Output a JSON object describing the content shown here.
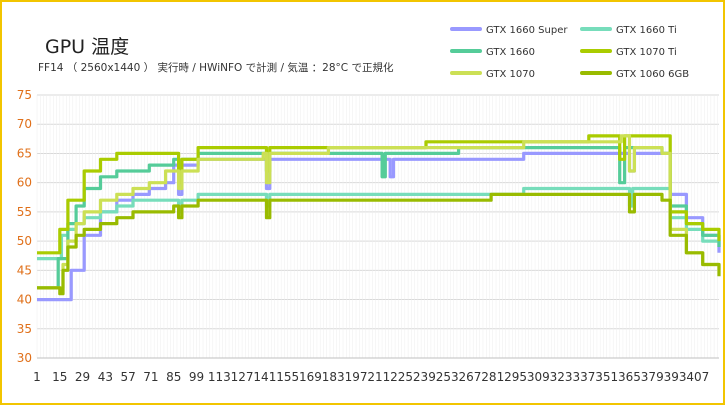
{
  "chart_data": {
    "type": "line",
    "title": "GPU 温度",
    "subtitle": "FF14 （ 2560x1440 ） 実行時 / HWiNFO で計測 / 気温 ：28°C で正規化",
    "xlabel": "",
    "ylabel": "",
    "ylim": [
      30,
      75
    ],
    "y_ticks": [
      30,
      35,
      40,
      45,
      50,
      55,
      60,
      65,
      70,
      75
    ],
    "x_range": [
      1,
      420
    ],
    "x_ticks": [
      1,
      15,
      29,
      43,
      57,
      71,
      85,
      99,
      113,
      127,
      141,
      155,
      169,
      183,
      197,
      211,
      225,
      239,
      253,
      267,
      281,
      295,
      309,
      323,
      337,
      351,
      365,
      379,
      393,
      407
    ],
    "grid": true,
    "legend_position": "top-right",
    "series": [
      {
        "name": "GTX 1660 Super",
        "color": "#9999ff",
        "points": [
          [
            1,
            40
          ],
          [
            20,
            40
          ],
          [
            22,
            45
          ],
          [
            30,
            51
          ],
          [
            40,
            55
          ],
          [
            50,
            57
          ],
          [
            60,
            58
          ],
          [
            70,
            59
          ],
          [
            80,
            60
          ],
          [
            85,
            63
          ],
          [
            88,
            58
          ],
          [
            90,
            63
          ],
          [
            100,
            64
          ],
          [
            120,
            64
          ],
          [
            140,
            64
          ],
          [
            142,
            59
          ],
          [
            144,
            64
          ],
          [
            160,
            64
          ],
          [
            190,
            64
          ],
          [
            215,
            64
          ],
          [
            218,
            61
          ],
          [
            220,
            64
          ],
          [
            250,
            64
          ],
          [
            300,
            65
          ],
          [
            340,
            65
          ],
          [
            360,
            65
          ],
          [
            365,
            62
          ],
          [
            368,
            65
          ],
          [
            385,
            65
          ],
          [
            390,
            58
          ],
          [
            400,
            54
          ],
          [
            410,
            51
          ],
          [
            420,
            48
          ]
        ]
      },
      {
        "name": "GTX 1660 Ti",
        "color": "#77ddbb",
        "points": [
          [
            1,
            47
          ],
          [
            14,
            47
          ],
          [
            16,
            51
          ],
          [
            20,
            52
          ],
          [
            25,
            53
          ],
          [
            30,
            54
          ],
          [
            40,
            55
          ],
          [
            50,
            56
          ],
          [
            60,
            57
          ],
          [
            70,
            57
          ],
          [
            85,
            57
          ],
          [
            88,
            55
          ],
          [
            90,
            57
          ],
          [
            100,
            58
          ],
          [
            140,
            58
          ],
          [
            142,
            56
          ],
          [
            144,
            58
          ],
          [
            180,
            58
          ],
          [
            200,
            58
          ],
          [
            240,
            58
          ],
          [
            280,
            58
          ],
          [
            300,
            59
          ],
          [
            340,
            59
          ],
          [
            360,
            59
          ],
          [
            365,
            56
          ],
          [
            367,
            59
          ],
          [
            385,
            59
          ],
          [
            390,
            54
          ],
          [
            400,
            52
          ],
          [
            410,
            50
          ],
          [
            420,
            49
          ]
        ]
      },
      {
        "name": "GTX 1660",
        "color": "#55cc99",
        "points": [
          [
            1,
            42
          ],
          [
            10,
            42
          ],
          [
            14,
            47
          ],
          [
            20,
            53
          ],
          [
            25,
            56
          ],
          [
            30,
            59
          ],
          [
            40,
            61
          ],
          [
            50,
            62
          ],
          [
            60,
            62
          ],
          [
            70,
            63
          ],
          [
            85,
            64
          ],
          [
            88,
            60
          ],
          [
            90,
            64
          ],
          [
            100,
            65
          ],
          [
            140,
            65
          ],
          [
            142,
            62
          ],
          [
            144,
            65
          ],
          [
            180,
            65
          ],
          [
            210,
            65
          ],
          [
            213,
            61
          ],
          [
            215,
            65
          ],
          [
            260,
            66
          ],
          [
            300,
            66
          ],
          [
            340,
            66
          ],
          [
            356,
            66
          ],
          [
            359,
            60
          ],
          [
            362,
            66
          ],
          [
            385,
            65
          ],
          [
            390,
            56
          ],
          [
            400,
            53
          ],
          [
            410,
            51
          ],
          [
            420,
            49
          ]
        ]
      },
      {
        "name": "GTX 1070 Ti",
        "color": "#aacc00",
        "points": [
          [
            1,
            48
          ],
          [
            12,
            48
          ],
          [
            15,
            52
          ],
          [
            20,
            57
          ],
          [
            30,
            62
          ],
          [
            40,
            64
          ],
          [
            50,
            65
          ],
          [
            60,
            65
          ],
          [
            70,
            65
          ],
          [
            85,
            65
          ],
          [
            88,
            60
          ],
          [
            90,
            64
          ],
          [
            100,
            66
          ],
          [
            140,
            66
          ],
          [
            142,
            62
          ],
          [
            144,
            66
          ],
          [
            170,
            66
          ],
          [
            200,
            66
          ],
          [
            240,
            67
          ],
          [
            280,
            67
          ],
          [
            300,
            67
          ],
          [
            340,
            68
          ],
          [
            356,
            68
          ],
          [
            359,
            64
          ],
          [
            362,
            68
          ],
          [
            385,
            68
          ],
          [
            390,
            55
          ],
          [
            400,
            53
          ],
          [
            410,
            52
          ],
          [
            420,
            50
          ]
        ]
      },
      {
        "name": "GTX 1070",
        "color": "#cce055",
        "points": [
          [
            1,
            42
          ],
          [
            15,
            42
          ],
          [
            17,
            46
          ],
          [
            20,
            50
          ],
          [
            25,
            53
          ],
          [
            30,
            55
          ],
          [
            40,
            57
          ],
          [
            50,
            58
          ],
          [
            60,
            59
          ],
          [
            70,
            60
          ],
          [
            80,
            62
          ],
          [
            85,
            62
          ],
          [
            88,
            59
          ],
          [
            90,
            62
          ],
          [
            100,
            64
          ],
          [
            140,
            65
          ],
          [
            142,
            60
          ],
          [
            144,
            65
          ],
          [
            180,
            66
          ],
          [
            220,
            66
          ],
          [
            260,
            66
          ],
          [
            300,
            67
          ],
          [
            340,
            67
          ],
          [
            360,
            68
          ],
          [
            365,
            62
          ],
          [
            368,
            66
          ],
          [
            385,
            65
          ],
          [
            390,
            52
          ],
          [
            400,
            48
          ],
          [
            410,
            46
          ],
          [
            420,
            45
          ]
        ]
      },
      {
        "name": "GTX 1060 6GB",
        "color": "#99bb00",
        "points": [
          [
            1,
            42
          ],
          [
            15,
            41
          ],
          [
            17,
            45
          ],
          [
            20,
            49
          ],
          [
            25,
            51
          ],
          [
            30,
            52
          ],
          [
            40,
            53
          ],
          [
            50,
            54
          ],
          [
            60,
            55
          ],
          [
            70,
            55
          ],
          [
            85,
            56
          ],
          [
            88,
            54
          ],
          [
            90,
            56
          ],
          [
            100,
            57
          ],
          [
            140,
            57
          ],
          [
            142,
            54
          ],
          [
            144,
            57
          ],
          [
            170,
            57
          ],
          [
            200,
            57
          ],
          [
            240,
            57
          ],
          [
            280,
            58
          ],
          [
            300,
            58
          ],
          [
            340,
            58
          ],
          [
            360,
            58
          ],
          [
            365,
            55
          ],
          [
            368,
            58
          ],
          [
            385,
            57
          ],
          [
            390,
            51
          ],
          [
            400,
            48
          ],
          [
            410,
            46
          ],
          [
            420,
            44
          ]
        ]
      }
    ]
  }
}
